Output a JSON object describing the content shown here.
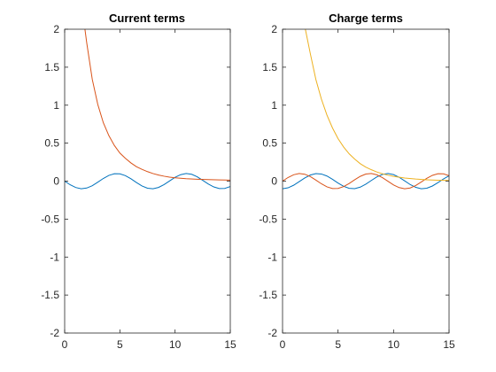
{
  "chart_data": [
    {
      "type": "line",
      "title": "Current terms",
      "xlabel": "",
      "ylabel": "",
      "xlim": [
        0,
        15
      ],
      "ylim": [
        -2,
        2
      ],
      "xticks": [
        "0",
        "5",
        "10",
        "15"
      ],
      "yticks": [
        "-2",
        "-1.5",
        "-1",
        "-0.5",
        "0",
        "0.5",
        "1",
        "1.5",
        "2"
      ],
      "grid": false,
      "series": [
        {
          "color": "#0072bd",
          "x": [
            0,
            0.5,
            1,
            1.5,
            2,
            2.5,
            3,
            3.5,
            4,
            4.5,
            5,
            5.5,
            6,
            6.5,
            7,
            7.5,
            8,
            8.5,
            9,
            9.5,
            10,
            10.5,
            11,
            11.5,
            12,
            12.5,
            13,
            13.5,
            14,
            14.5,
            15
          ],
          "y": [
            0,
            -0.048,
            -0.084,
            -0.1,
            -0.091,
            -0.06,
            -0.014,
            0.035,
            0.075,
            0.097,
            0.096,
            0.072,
            0.031,
            -0.018,
            -0.063,
            -0.093,
            -0.1,
            -0.083,
            -0.046,
            0.002,
            0.05,
            0.085,
            0.1,
            0.09,
            0.058,
            0.011,
            -0.037,
            -0.076,
            -0.098,
            -0.096,
            -0.071
          ]
        },
        {
          "color": "#d95319",
          "x": [
            1.8,
            2,
            2.5,
            3,
            3.5,
            4,
            4.5,
            5,
            5.5,
            6,
            6.5,
            7,
            7.5,
            8,
            8.5,
            9,
            9.5,
            10,
            11,
            12,
            13,
            14,
            15
          ],
          "y": [
            2.04,
            1.82,
            1.34,
            1.01,
            0.77,
            0.6,
            0.47,
            0.37,
            0.3,
            0.24,
            0.19,
            0.155,
            0.125,
            0.1,
            0.08,
            0.065,
            0.052,
            0.044,
            0.032,
            0.025,
            0.02,
            0.016,
            0.013
          ]
        }
      ]
    },
    {
      "type": "line",
      "title": "Charge terms",
      "xlabel": "",
      "ylabel": "",
      "xlim": [
        0,
        15
      ],
      "ylim": [
        -2,
        2
      ],
      "xticks": [
        "0",
        "5",
        "10",
        "15"
      ],
      "yticks": [
        "-2",
        "-1.5",
        "-1",
        "-0.5",
        "0",
        "0.5",
        "1",
        "1.5",
        "2"
      ],
      "grid": false,
      "series": [
        {
          "color": "#0072bd",
          "x": [
            0,
            0.5,
            1,
            1.5,
            2,
            2.5,
            3,
            3.5,
            4,
            4.5,
            5,
            5.5,
            6,
            6.5,
            7,
            7.5,
            8,
            8.5,
            9,
            9.5,
            10,
            10.5,
            11,
            11.5,
            12,
            12.5,
            13,
            13.5,
            14,
            14.5,
            15
          ],
          "y": [
            -0.1,
            -0.088,
            -0.054,
            -0.007,
            0.042,
            0.08,
            0.099,
            0.094,
            0.067,
            0.024,
            -0.025,
            -0.068,
            -0.095,
            -0.099,
            -0.079,
            -0.04,
            0.009,
            0.056,
            0.089,
            0.1,
            0.086,
            0.051,
            0.004,
            -0.045,
            -0.082,
            -0.1,
            -0.093,
            -0.064,
            -0.02,
            0.029,
            0.071
          ]
        },
        {
          "color": "#d95319",
          "x": [
            0,
            0.5,
            1,
            1.5,
            2,
            2.5,
            3,
            3.5,
            4,
            4.5,
            5,
            5.5,
            6,
            6.5,
            7,
            7.5,
            8,
            8.5,
            9,
            9.5,
            10,
            10.5,
            11,
            11.5,
            12,
            12.5,
            13,
            13.5,
            14,
            14.5,
            15
          ],
          "y": [
            0,
            0.048,
            0.084,
            0.1,
            0.091,
            0.06,
            0.014,
            -0.035,
            -0.075,
            -0.097,
            -0.096,
            -0.072,
            -0.031,
            0.018,
            0.063,
            0.093,
            0.1,
            0.083,
            0.046,
            -0.002,
            -0.05,
            -0.085,
            -0.1,
            -0.09,
            -0.058,
            -0.011,
            0.037,
            0.076,
            0.098,
            0.096,
            0.071
          ]
        },
        {
          "color": "#edb120",
          "x": [
            2.0,
            2.5,
            3,
            3.5,
            4,
            4.5,
            5,
            5.5,
            6,
            6.5,
            7,
            7.5,
            8,
            8.5,
            9,
            9.5,
            10,
            11,
            12,
            13,
            14,
            15
          ],
          "y": [
            2.04,
            1.68,
            1.34,
            1.08,
            0.87,
            0.7,
            0.56,
            0.45,
            0.36,
            0.29,
            0.23,
            0.185,
            0.15,
            0.12,
            0.097,
            0.078,
            0.063,
            0.041,
            0.027,
            0.018,
            0.012,
            0.008
          ]
        }
      ]
    }
  ]
}
